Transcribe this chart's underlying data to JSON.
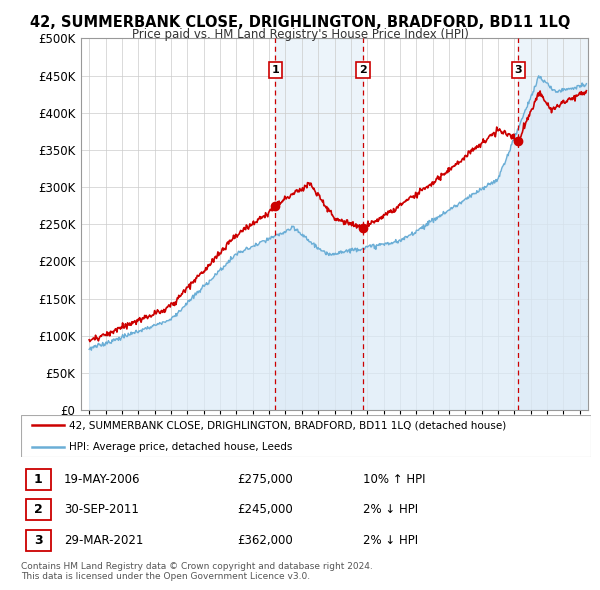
{
  "title": "42, SUMMERBANK CLOSE, DRIGHLINGTON, BRADFORD, BD11 1LQ",
  "subtitle": "Price paid vs. HM Land Registry's House Price Index (HPI)",
  "ylim": [
    0,
    500000
  ],
  "xlim_start": 1994.5,
  "xlim_end": 2025.5,
  "legend_line1": "42, SUMMERBANK CLOSE, DRIGHLINGTON, BRADFORD, BD11 1LQ (detached house)",
  "legend_line2": "HPI: Average price, detached house, Leeds",
  "transactions": [
    {
      "number": 1,
      "date": "19-MAY-2006",
      "price": 275000,
      "hpi_rel": "10% ↑ HPI",
      "x": 2006.38
    },
    {
      "number": 2,
      "date": "30-SEP-2011",
      "price": 245000,
      "hpi_rel": "2% ↓ HPI",
      "x": 2011.75
    },
    {
      "number": 3,
      "date": "29-MAR-2021",
      "price": 362000,
      "hpi_rel": "2% ↓ HPI",
      "x": 2021.24
    }
  ],
  "footnote1": "Contains HM Land Registry data © Crown copyright and database right 2024.",
  "footnote2": "This data is licensed under the Open Government Licence v3.0.",
  "hpi_fill_color": "#daeaf7",
  "hpi_line_color": "#6baed6",
  "house_color": "#cc0000",
  "transaction_color": "#cc0000",
  "shade_color": "#daeaf7",
  "background_color": "#ffffff",
  "grid_color": "#cccccc"
}
